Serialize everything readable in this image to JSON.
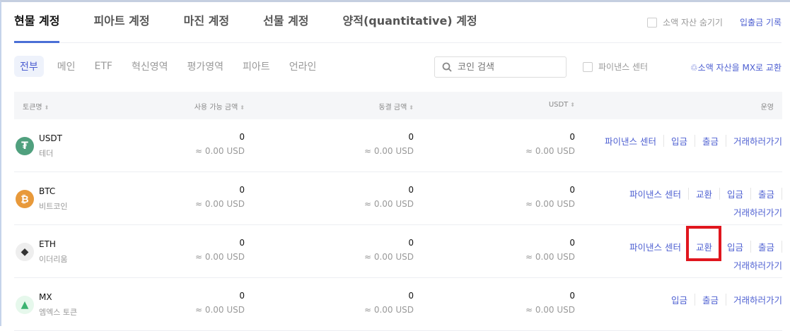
{
  "tabs": [
    {
      "label": "현물 계정",
      "active": true
    },
    {
      "label": "피아트 계정"
    },
    {
      "label": "마진 계정"
    },
    {
      "label": "선물 계정"
    },
    {
      "label": "양적(quantitative) 계정"
    }
  ],
  "header": {
    "hide_small": "소액 자산 숨기기",
    "history": "입출금 기록"
  },
  "filters": [
    "전부",
    "메인",
    "ETF",
    "혁신영역",
    "평가영역",
    "피아트",
    "언라인"
  ],
  "search": {
    "placeholder": "코인 검색",
    "icon": "search-icon"
  },
  "finance_center_checkbox": "파이낸스 센터",
  "convert_link": "소액 자산을 MX로 교환",
  "columns": {
    "token": "토큰명",
    "available": "사용 가능 금액",
    "frozen": "동결 금액",
    "usdt": "USDT",
    "ops": "운영"
  },
  "rows": [
    {
      "symbol": "USDT",
      "name": "테더",
      "color": "#50a07e",
      "available": "0",
      "available_usd": "≈ 0.00 USD",
      "frozen": "0",
      "frozen_usd": "≈ 0.00 USD",
      "usdt": "0",
      "usdt_usd": "≈ 0.00 USD",
      "actions": [
        "파이낸스 센터",
        "입금",
        "출금",
        "거래하러가기"
      ]
    },
    {
      "symbol": "BTC",
      "name": "비트코인",
      "color": "#e8993a",
      "available": "0",
      "available_usd": "≈ 0.00 USD",
      "frozen": "0",
      "frozen_usd": "≈ 0.00 USD",
      "usdt": "0",
      "usdt_usd": "≈ 0.00 USD",
      "actions": [
        "파이낸스 센터",
        "교환",
        "입금",
        "출금",
        "거래하러가기"
      ]
    },
    {
      "symbol": "ETH",
      "name": "이더리움",
      "color": "#eeeeee",
      "available": "0",
      "available_usd": "≈ 0.00 USD",
      "frozen": "0",
      "frozen_usd": "≈ 0.00 USD",
      "usdt": "0",
      "usdt_usd": "≈ 0.00 USD",
      "actions": [
        "파이낸스 센터",
        "교환",
        "입금",
        "출금",
        "거래하러가기"
      ]
    },
    {
      "symbol": "MX",
      "name": "엠엑스 토큰",
      "color": "#e6f8ec",
      "available": "0",
      "available_usd": "≈ 0.00 USD",
      "frozen": "0",
      "frozen_usd": "≈ 0.00 USD",
      "usdt": "0",
      "usdt_usd": "≈ 0.00 USD",
      "actions": [
        "입금",
        "출금",
        "거래하러가기"
      ]
    }
  ],
  "accent": "#4d5fd1",
  "highlight": "#e0161e"
}
